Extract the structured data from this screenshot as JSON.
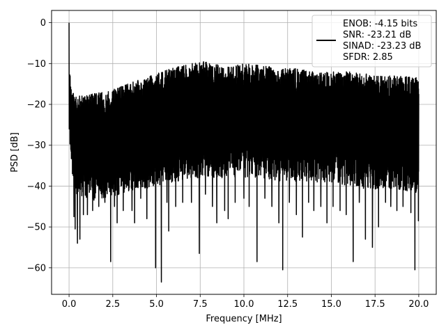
{
  "chart_data": {
    "type": "line",
    "xlabel": "Frequency [MHz]",
    "ylabel": "PSD [dB]",
    "xlim": [
      -1.0,
      21.0
    ],
    "ylim": [
      -66.5,
      3.0
    ],
    "x_ticks": [
      0.0,
      2.5,
      5.0,
      7.5,
      10.0,
      12.5,
      15.0,
      17.5,
      20.0
    ],
    "x_tick_labels": [
      "0.0",
      "2.5",
      "5.0",
      "7.5",
      "10.0",
      "12.5",
      "15.0",
      "17.5",
      "20.0"
    ],
    "y_ticks": [
      0,
      -10,
      -20,
      -30,
      -40,
      -50,
      -60
    ],
    "y_tick_labels": [
      "0",
      "−10",
      "−20",
      "−30",
      "−40",
      "−50",
      "−60"
    ],
    "grid": true,
    "legend_position": "upper right",
    "line_color": "#000000",
    "series": [
      {
        "name": "ENOB: -4.15 bits\nSNR: -23.21 dB\nSINAD: -23.23 dB\nSFDR: 2.85",
        "x_range": [
          0.0,
          20.0
        ],
        "spike": {
          "x": 0.0,
          "y": 0.0
        },
        "upper_envelope": [
          [
            0.0,
            -8
          ],
          [
            0.15,
            -17
          ],
          [
            0.5,
            -18
          ],
          [
            1.0,
            -17.5
          ],
          [
            2.0,
            -17
          ],
          [
            3.0,
            -15.5
          ],
          [
            4.0,
            -14
          ],
          [
            5.0,
            -12.5
          ],
          [
            6.0,
            -11
          ],
          [
            7.0,
            -10
          ],
          [
            7.5,
            -9
          ],
          [
            8.0,
            -10
          ],
          [
            9.0,
            -10.5
          ],
          [
            10.0,
            -10
          ],
          [
            11.0,
            -10.5
          ],
          [
            12.0,
            -11
          ],
          [
            13.0,
            -11
          ],
          [
            14.0,
            -12
          ],
          [
            15.0,
            -12
          ],
          [
            16.0,
            -12
          ],
          [
            17.0,
            -12.5
          ],
          [
            18.0,
            -13
          ],
          [
            19.0,
            -13
          ],
          [
            20.0,
            -13.5
          ]
        ],
        "lower_envelope": [
          [
            0.0,
            -28
          ],
          [
            0.15,
            -37
          ],
          [
            0.5,
            -43
          ],
          [
            1.0,
            -44
          ],
          [
            2.0,
            -43
          ],
          [
            3.0,
            -42
          ],
          [
            4.0,
            -41
          ],
          [
            5.0,
            -40
          ],
          [
            6.0,
            -39
          ],
          [
            7.0,
            -38
          ],
          [
            8.0,
            -38
          ],
          [
            9.0,
            -38
          ],
          [
            10.0,
            -38
          ],
          [
            11.0,
            -38
          ],
          [
            12.0,
            -39
          ],
          [
            13.0,
            -39
          ],
          [
            14.0,
            -39
          ],
          [
            15.0,
            -39
          ],
          [
            16.0,
            -40
          ],
          [
            17.0,
            -41
          ],
          [
            18.0,
            -41
          ],
          [
            19.0,
            -41
          ],
          [
            20.0,
            -42
          ]
        ],
        "deep_dips": [
          {
            "x": 0.28,
            "y": -47.5
          },
          {
            "x": 0.35,
            "y": -50.5
          },
          {
            "x": 0.48,
            "y": -54
          },
          {
            "x": 0.62,
            "y": -53
          },
          {
            "x": 0.82,
            "y": -47
          },
          {
            "x": 1.05,
            "y": -47
          },
          {
            "x": 1.35,
            "y": -46
          },
          {
            "x": 1.7,
            "y": -45
          },
          {
            "x": 2.05,
            "y": -44
          },
          {
            "x": 2.38,
            "y": -58.5
          },
          {
            "x": 2.6,
            "y": -45
          },
          {
            "x": 2.75,
            "y": -49
          },
          {
            "x": 3.1,
            "y": -46
          },
          {
            "x": 3.6,
            "y": -46
          },
          {
            "x": 3.75,
            "y": -49
          },
          {
            "x": 4.1,
            "y": -43
          },
          {
            "x": 4.45,
            "y": -48
          },
          {
            "x": 4.95,
            "y": -60
          },
          {
            "x": 5.28,
            "y": -63.5
          },
          {
            "x": 5.6,
            "y": -44
          },
          {
            "x": 5.7,
            "y": -51
          },
          {
            "x": 6.1,
            "y": -45
          },
          {
            "x": 6.5,
            "y": -44
          },
          {
            "x": 7.0,
            "y": -44
          },
          {
            "x": 7.45,
            "y": -56.5
          },
          {
            "x": 7.8,
            "y": -42
          },
          {
            "x": 8.2,
            "y": -45
          },
          {
            "x": 8.45,
            "y": -49
          },
          {
            "x": 8.9,
            "y": -46
          },
          {
            "x": 9.1,
            "y": -48
          },
          {
            "x": 9.5,
            "y": -44
          },
          {
            "x": 10.0,
            "y": -43
          },
          {
            "x": 10.3,
            "y": -45
          },
          {
            "x": 10.75,
            "y": -58.5
          },
          {
            "x": 11.2,
            "y": -43
          },
          {
            "x": 11.6,
            "y": -45
          },
          {
            "x": 12.0,
            "y": -49
          },
          {
            "x": 12.22,
            "y": -60.5
          },
          {
            "x": 12.6,
            "y": -44
          },
          {
            "x": 13.0,
            "y": -47
          },
          {
            "x": 13.35,
            "y": -52.5
          },
          {
            "x": 13.7,
            "y": -44
          },
          {
            "x": 14.0,
            "y": -46
          },
          {
            "x": 14.4,
            "y": -45
          },
          {
            "x": 14.75,
            "y": -49
          },
          {
            "x": 15.1,
            "y": -45
          },
          {
            "x": 15.5,
            "y": -46
          },
          {
            "x": 15.85,
            "y": -47
          },
          {
            "x": 16.25,
            "y": -58.5
          },
          {
            "x": 16.6,
            "y": -44
          },
          {
            "x": 16.95,
            "y": -53
          },
          {
            "x": 17.35,
            "y": -55
          },
          {
            "x": 17.7,
            "y": -50
          },
          {
            "x": 18.1,
            "y": -44
          },
          {
            "x": 18.4,
            "y": -45
          },
          {
            "x": 18.75,
            "y": -46
          },
          {
            "x": 19.1,
            "y": -45
          },
          {
            "x": 19.55,
            "y": -46.5
          },
          {
            "x": 19.78,
            "y": -60.5
          },
          {
            "x": 19.98,
            "y": -48.5
          }
        ]
      }
    ]
  }
}
